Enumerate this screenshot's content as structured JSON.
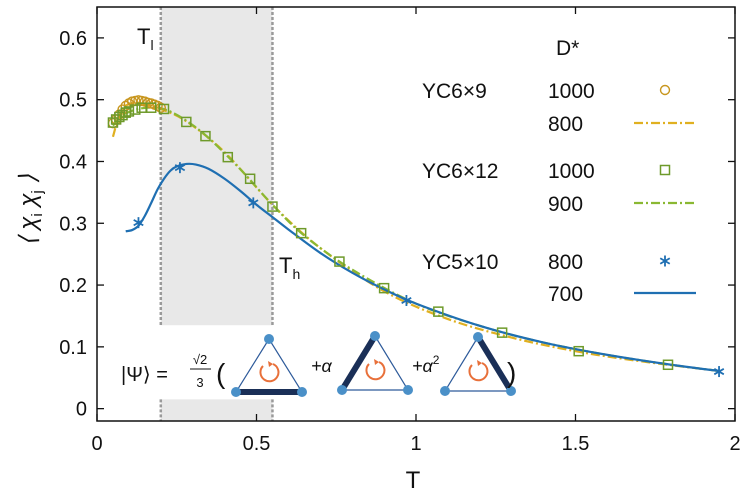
{
  "chart_data": {
    "type": "line",
    "xlabel": "T",
    "ylabel": "⟨ χ_i χ_j ⟩",
    "xlim": [
      0,
      2
    ],
    "ylim": [
      -0.02,
      0.65
    ],
    "xticks": [
      "0",
      "0.5",
      "1",
      "1.5",
      "2"
    ],
    "yticks": [
      "0",
      "0.1",
      "0.2",
      "0.3",
      "0.4",
      "0.5",
      "0.6"
    ],
    "grid": false,
    "shaded_region": {
      "x": [
        0.2,
        0.55
      ],
      "gap_y": [
        0.015,
        0.135
      ],
      "color": "#e8e8e8"
    },
    "annotations": {
      "Tl": {
        "main": "T",
        "sub": "l"
      },
      "Th": {
        "main": "T",
        "sub": "h"
      }
    },
    "legend": {
      "header": "D*",
      "groups": [
        {
          "label": "YC6×9",
          "entries": [
            "1000",
            "800"
          ]
        },
        {
          "label": "YC6×12",
          "entries": [
            "1000",
            "900"
          ]
        },
        {
          "label": "YC5×10",
          "entries": [
            "800",
            "700"
          ]
        }
      ]
    },
    "series": [
      {
        "name": "YC6×9 1000",
        "marker": "circle",
        "color": "#c8961e",
        "x": [
          0.05,
          0.06,
          0.07,
          0.08,
          0.09,
          0.1,
          0.11,
          0.12,
          0.13,
          0.14,
          0.15,
          0.16,
          0.17,
          0.18,
          0.19,
          0.2
        ],
        "y": [
          0.462,
          0.468,
          0.476,
          0.484,
          0.49,
          0.494,
          0.497,
          0.498,
          0.499,
          0.498,
          0.497,
          0.495,
          0.494,
          0.492,
          0.49,
          0.487
        ]
      },
      {
        "name": "YC6×9 800",
        "line": "dashdot",
        "color": "#e0b020",
        "x": [
          0.05,
          0.07,
          0.09,
          0.12,
          0.15,
          0.2,
          0.28,
          0.4,
          0.55,
          0.7,
          0.9,
          1.1,
          1.3,
          1.5,
          1.7,
          1.95
        ],
        "y": [
          0.44,
          0.475,
          0.49,
          0.495,
          0.493,
          0.485,
          0.465,
          0.415,
          0.33,
          0.26,
          0.19,
          0.145,
          0.115,
          0.093,
          0.077,
          0.061
        ]
      },
      {
        "name": "YC6×12 1000",
        "marker": "square",
        "color": "#6e9a2a",
        "x": [
          0.05,
          0.06,
          0.07,
          0.08,
          0.09,
          0.1,
          0.12,
          0.14,
          0.17,
          0.21,
          0.28,
          0.34,
          0.41,
          0.48,
          0.55,
          0.64,
          0.76,
          0.9,
          1.07,
          1.27,
          1.51,
          1.79
        ],
        "y": [
          0.463,
          0.468,
          0.472,
          0.475,
          0.479,
          0.481,
          0.484,
          0.487,
          0.487,
          0.485,
          0.464,
          0.441,
          0.407,
          0.372,
          0.327,
          0.284,
          0.238,
          0.195,
          0.157,
          0.123,
          0.093,
          0.071
        ]
      },
      {
        "name": "YC6×12 900",
        "line": "dashdot",
        "color": "#8ab832",
        "x": [
          0.05,
          0.07,
          0.1,
          0.14,
          0.18,
          0.22,
          0.28,
          0.35,
          0.45,
          0.55,
          0.65,
          0.8,
          1.0,
          1.2,
          1.4,
          1.6,
          1.8,
          1.95
        ],
        "y": [
          0.458,
          0.47,
          0.48,
          0.486,
          0.487,
          0.483,
          0.466,
          0.438,
          0.387,
          0.33,
          0.28,
          0.225,
          0.17,
          0.134,
          0.107,
          0.087,
          0.071,
          0.061
        ]
      },
      {
        "name": "YC5×10 800",
        "marker": "asterisk",
        "color": "#1f6fb2",
        "x": [
          0.13,
          0.26,
          0.49,
          0.97,
          1.95
        ],
        "y": [
          0.301,
          0.39,
          0.333,
          0.175,
          0.06
        ]
      },
      {
        "name": "YC5×10 700",
        "line": "solid",
        "color": "#1f6fb2",
        "x": [
          0.09,
          0.11,
          0.13,
          0.15,
          0.17,
          0.19,
          0.21,
          0.23,
          0.25,
          0.28,
          0.31,
          0.35,
          0.4,
          0.45,
          0.5,
          0.55,
          0.6,
          0.7,
          0.8,
          0.9,
          1.0,
          1.2,
          1.4,
          1.6,
          1.8,
          1.95
        ],
        "y": [
          0.287,
          0.289,
          0.296,
          0.312,
          0.333,
          0.355,
          0.372,
          0.385,
          0.392,
          0.396,
          0.395,
          0.388,
          0.372,
          0.352,
          0.33,
          0.31,
          0.29,
          0.252,
          0.22,
          0.193,
          0.17,
          0.134,
          0.107,
          0.087,
          0.071,
          0.061
        ]
      }
    ]
  },
  "formula": {
    "lhs": "|Ψ⟩ = ",
    "frac_num": "√2",
    "frac_den": "3",
    "open": "(",
    "term2": "+α",
    "term3": "+α",
    "term3_exp": "2",
    "close": ")"
  }
}
